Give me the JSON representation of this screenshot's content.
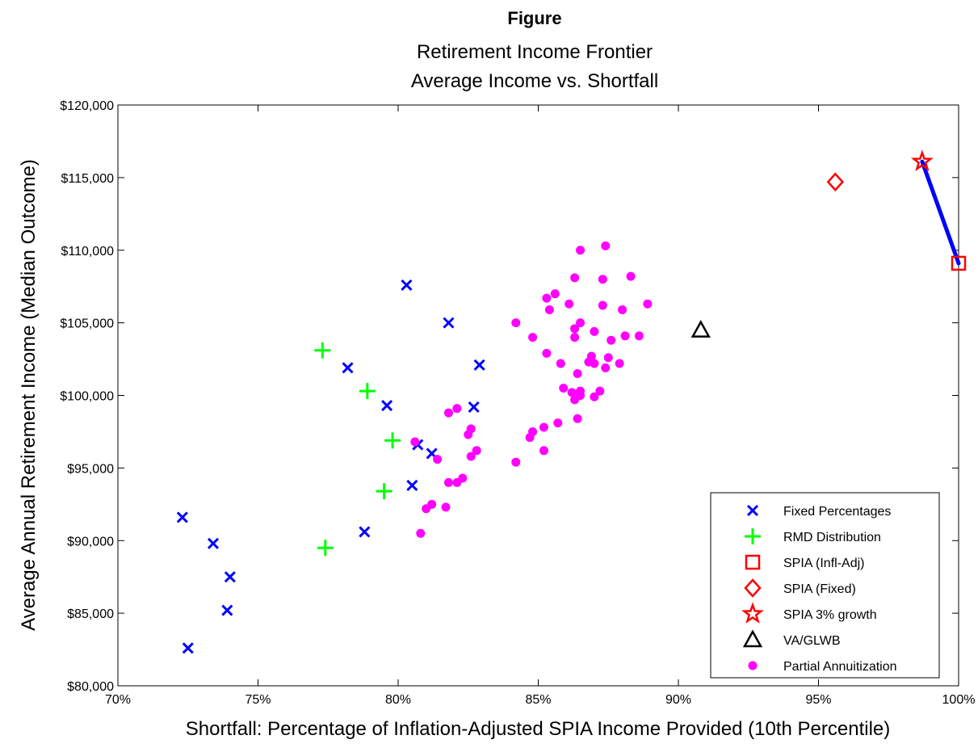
{
  "chart_data": {
    "type": "scatter",
    "title": "Figure",
    "subtitle_lines": [
      "Retirement Income Frontier",
      "Average Income vs. Shortfall"
    ],
    "xlabel": "Shortfall: Percentage of Inflation-Adjusted SPIA Income Provided (10th Percentile)",
    "ylabel": "Average Annual Retirement Income (Median Outcome)",
    "xlim": [
      70,
      100
    ],
    "ylim": [
      80000,
      120000
    ],
    "x_ticks": [
      70,
      75,
      80,
      85,
      90,
      95,
      100
    ],
    "x_tick_labels": [
      "70%",
      "75%",
      "80%",
      "85%",
      "90%",
      "95%",
      "100%"
    ],
    "y_ticks": [
      80000,
      85000,
      90000,
      95000,
      100000,
      105000,
      110000,
      115000,
      120000
    ],
    "y_tick_labels": [
      "$80,000",
      "$85,000",
      "$90,000",
      "$95,000",
      "$100,000",
      "$105,000",
      "$110,000",
      "$115,000",
      "$120,000"
    ],
    "grid": false,
    "legend_position": "bottom-right",
    "series": [
      {
        "name": "Fixed Percentages",
        "marker": "x",
        "color": "#0000ff",
        "points": [
          [
            72.3,
            91600
          ],
          [
            73.4,
            89800
          ],
          [
            74.0,
            87500
          ],
          [
            73.9,
            85200
          ],
          [
            72.5,
            82600
          ],
          [
            78.2,
            101900
          ],
          [
            79.6,
            99300
          ],
          [
            80.3,
            107600
          ],
          [
            81.8,
            105000
          ],
          [
            80.7,
            96600
          ],
          [
            81.2,
            96000
          ],
          [
            80.5,
            93800
          ],
          [
            78.8,
            90600
          ],
          [
            82.7,
            99200
          ],
          [
            82.9,
            102100
          ]
        ]
      },
      {
        "name": "RMD Distribution",
        "marker": "plus",
        "color": "#00ff00",
        "points": [
          [
            77.3,
            103100
          ],
          [
            78.9,
            100300
          ],
          [
            79.8,
            96900
          ],
          [
            79.5,
            93400
          ],
          [
            77.4,
            89500
          ]
        ]
      },
      {
        "name": "SPIA (Infl-Adj)",
        "marker": "square",
        "color": "#ff0000",
        "points": [
          [
            100.0,
            109100
          ]
        ]
      },
      {
        "name": "SPIA (Fixed)",
        "marker": "diamond",
        "color": "#ff0000",
        "points": [
          [
            95.6,
            114700
          ]
        ]
      },
      {
        "name": "SPIA 3% growth",
        "marker": "star",
        "color": "#ff0000",
        "points": [
          [
            98.7,
            116100
          ]
        ]
      },
      {
        "name": "VA/GLWB",
        "marker": "triangle",
        "color": "#000000",
        "points": [
          [
            90.8,
            104500
          ]
        ]
      },
      {
        "name": "Partial Annuitization",
        "marker": "dot",
        "color": "#ff00ff",
        "points": [
          [
            80.6,
            96800
          ],
          [
            80.8,
            90500
          ],
          [
            81.0,
            92200
          ],
          [
            81.2,
            92500
          ],
          [
            81.4,
            95600
          ],
          [
            81.7,
            92300
          ],
          [
            81.8,
            94000
          ],
          [
            81.8,
            98800
          ],
          [
            82.1,
            94000
          ],
          [
            82.1,
            99100
          ],
          [
            82.3,
            94300
          ],
          [
            82.5,
            97300
          ],
          [
            82.6,
            97700
          ],
          [
            82.6,
            95800
          ],
          [
            82.8,
            96200
          ],
          [
            84.2,
            105000
          ],
          [
            84.2,
            95400
          ],
          [
            84.7,
            97100
          ],
          [
            84.8,
            97500
          ],
          [
            84.8,
            104000
          ],
          [
            85.2,
            97800
          ],
          [
            85.2,
            96200
          ],
          [
            85.3,
            106700
          ],
          [
            85.3,
            102900
          ],
          [
            85.4,
            105900
          ],
          [
            85.6,
            107000
          ],
          [
            85.7,
            98100
          ],
          [
            85.8,
            102200
          ],
          [
            85.9,
            100500
          ],
          [
            86.1,
            106300
          ],
          [
            86.2,
            100200
          ],
          [
            86.3,
            99700
          ],
          [
            86.3,
            104600
          ],
          [
            86.3,
            104000
          ],
          [
            86.3,
            108100
          ],
          [
            86.4,
            101500
          ],
          [
            86.4,
            98400
          ],
          [
            86.5,
            100000
          ],
          [
            86.5,
            100300
          ],
          [
            86.5,
            105000
          ],
          [
            86.5,
            110000
          ],
          [
            86.8,
            102300
          ],
          [
            86.9,
            102700
          ],
          [
            87.0,
            99900
          ],
          [
            87.0,
            102200
          ],
          [
            87.0,
            104400
          ],
          [
            87.2,
            100300
          ],
          [
            87.3,
            106200
          ],
          [
            87.3,
            108000
          ],
          [
            87.4,
            101900
          ],
          [
            87.4,
            110300
          ],
          [
            87.5,
            102600
          ],
          [
            87.6,
            103800
          ],
          [
            87.9,
            102200
          ],
          [
            88.0,
            105900
          ],
          [
            88.1,
            104100
          ],
          [
            88.3,
            108200
          ],
          [
            88.6,
            104100
          ],
          [
            88.9,
            106300
          ]
        ]
      }
    ],
    "connecting_line": {
      "color": "#0000ff",
      "from": [
        98.7,
        116100
      ],
      "to": [
        100.0,
        109100
      ]
    }
  }
}
